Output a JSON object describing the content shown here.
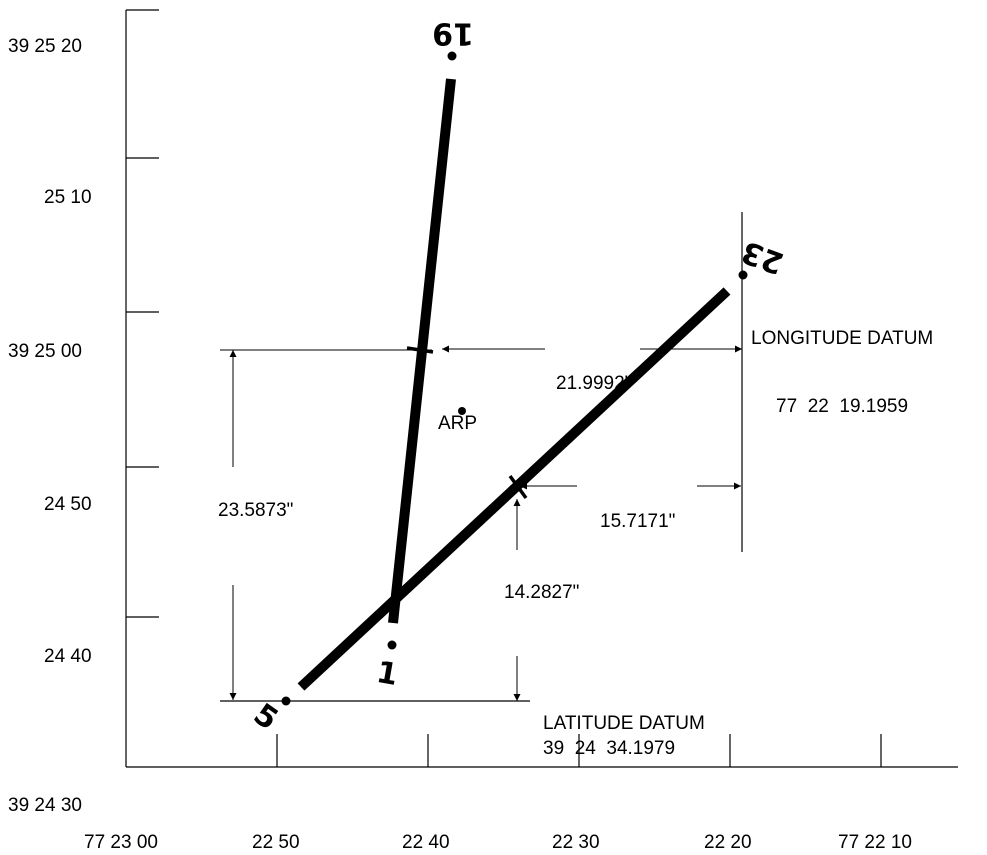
{
  "y_axis_labels": [
    "39 25 20",
    "25 10",
    "39 25 00",
    "24 50",
    "24 40",
    "39 24 30"
  ],
  "x_axis_labels": [
    "77 23 00",
    "22 50",
    "22 40",
    "22 30",
    "22 20",
    "77 22 10"
  ],
  "runway_ends": {
    "r19": "19",
    "r23": "23",
    "r1": "1",
    "r5": "5"
  },
  "arp_label": "ARP",
  "dimensions": {
    "horizontal_arp_offset": "21.9992\"",
    "vertical_arp_offset": "23.5873\"",
    "horizontal_intersection_offset": "15.7171\"",
    "vertical_intersection_offset": "14.2827\""
  },
  "longitude_datum": {
    "title": "LONGITUDE DATUM",
    "value": "77  22  19.1959"
  },
  "latitude_datum": {
    "title": "LATITUDE DATUM",
    "value": "39  24  34.1979"
  }
}
